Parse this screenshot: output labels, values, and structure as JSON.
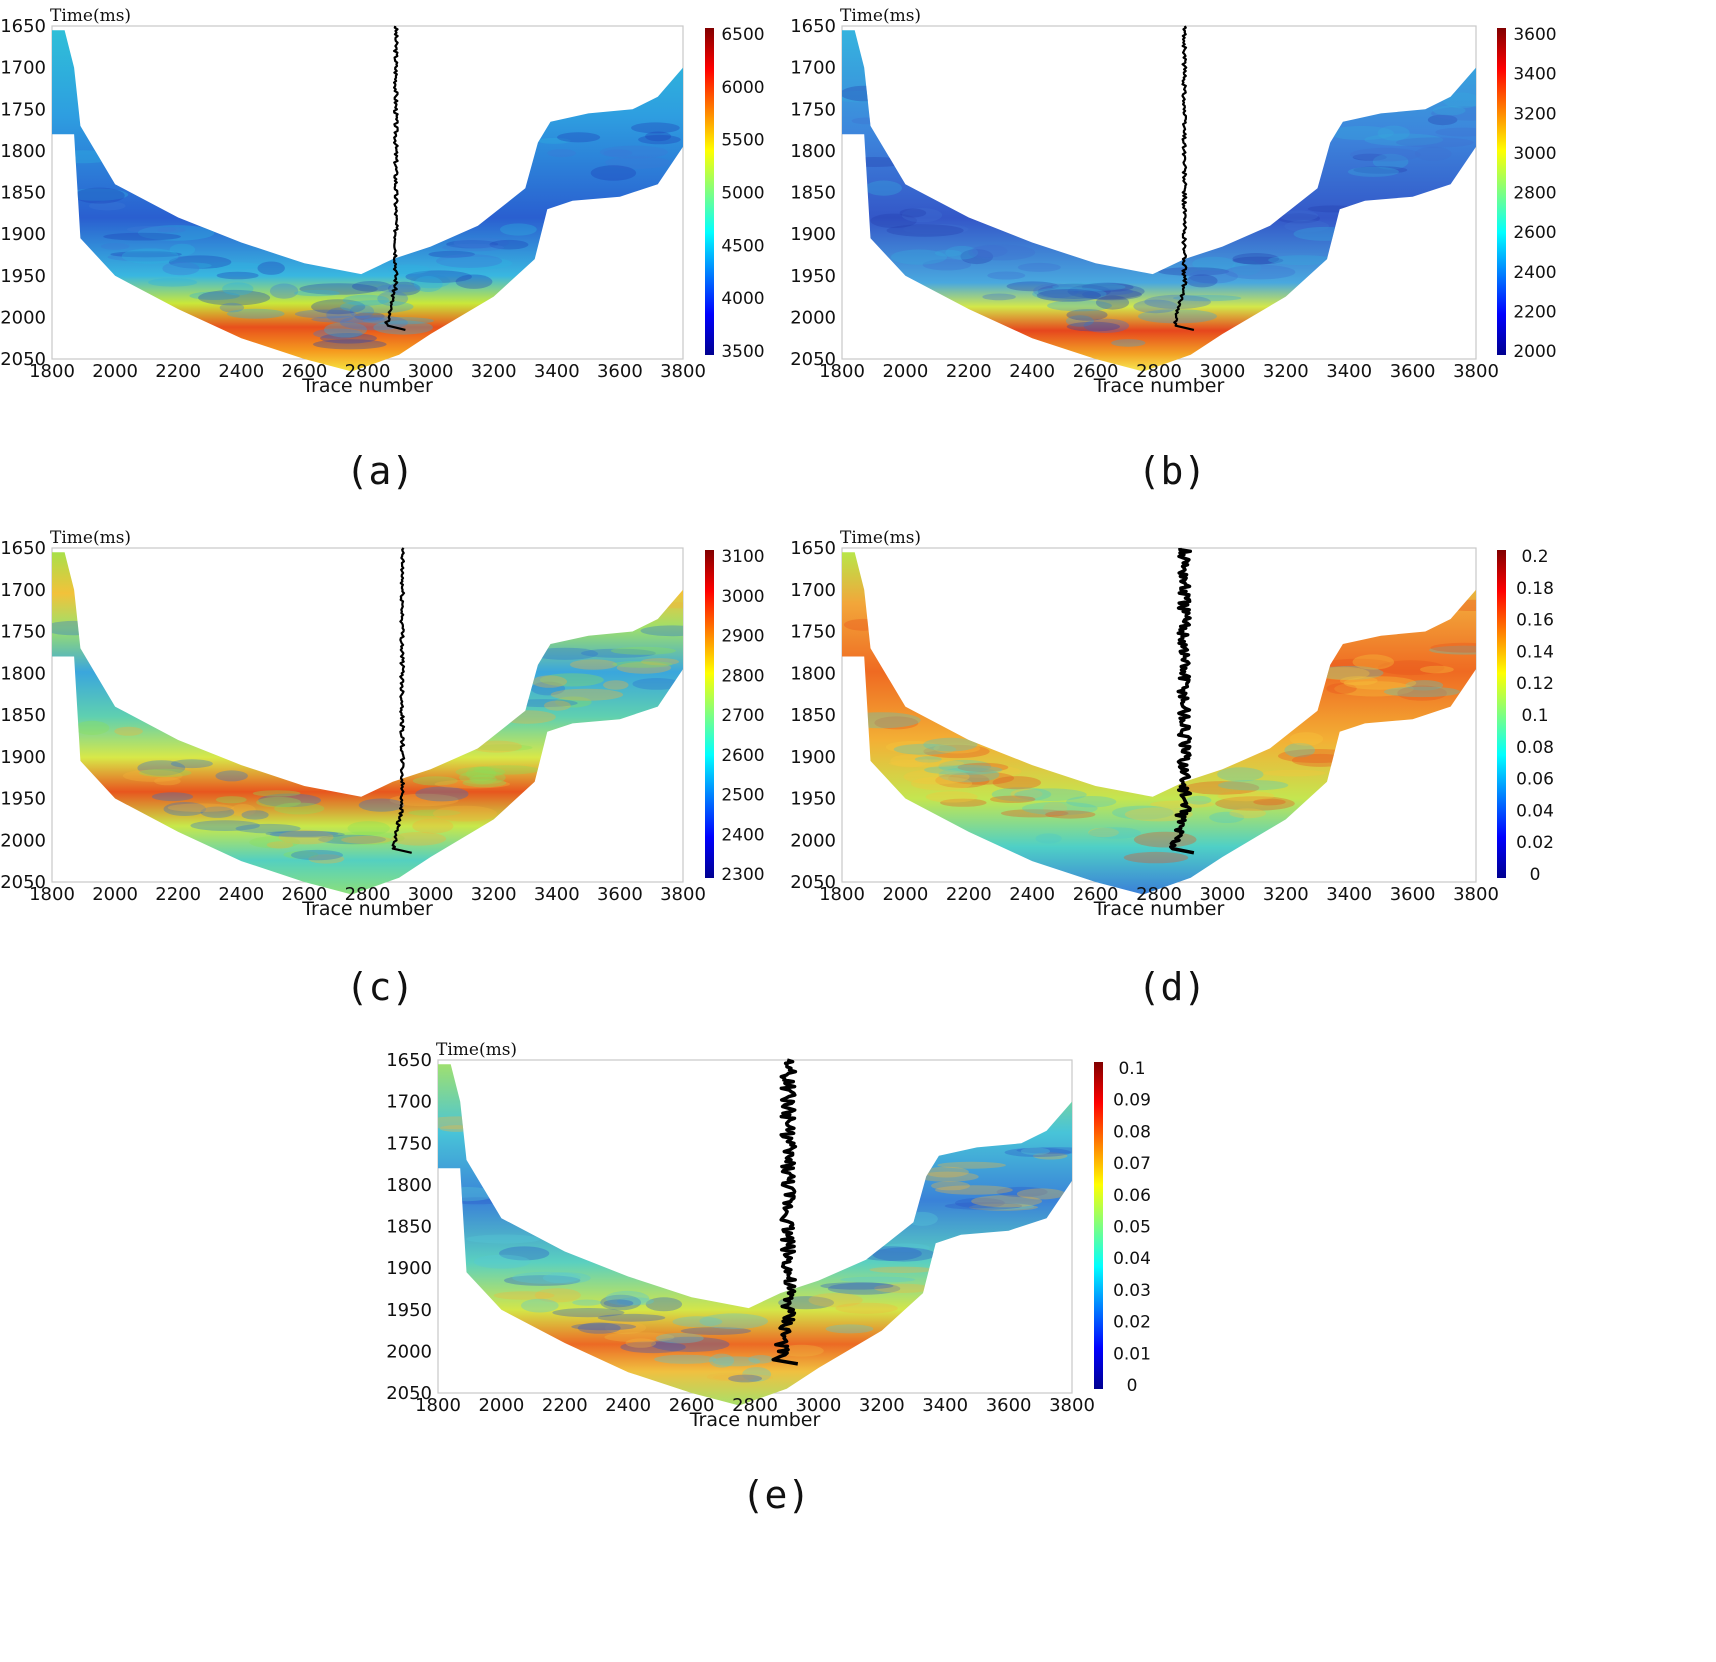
{
  "chart_data": [
    {
      "id": "a",
      "type": "heatmap",
      "caption": "(a)",
      "ylabel": "Time(ms)",
      "xlabel": "Trace number",
      "xlim": [
        1800,
        3800
      ],
      "ylim": [
        1650,
        2050
      ],
      "xticks": [
        "1800",
        "2000",
        "2200",
        "2400",
        "2600",
        "2800",
        "3000",
        "3200",
        "3400",
        "3600",
        "3800"
      ],
      "yticks": [
        "1650",
        "1700",
        "1750",
        "1800",
        "1850",
        "1900",
        "1950",
        "2000",
        "2050"
      ],
      "colorbar": {
        "min": 3500,
        "max": 6500,
        "ticks": [
          "6500",
          "6000",
          "5500",
          "5000",
          "4500",
          "4000",
          "3500"
        ]
      }
    },
    {
      "id": "b",
      "type": "heatmap",
      "caption": "(b)",
      "ylabel": "Time(ms)",
      "xlabel": "Trace number",
      "xlim": [
        1800,
        3800
      ],
      "ylim": [
        1650,
        2050
      ],
      "xticks": [
        "1800",
        "2000",
        "2200",
        "2400",
        "2600",
        "2800",
        "3000",
        "3200",
        "3400",
        "3600",
        "3800"
      ],
      "yticks": [
        "1650",
        "1700",
        "1750",
        "1800",
        "1850",
        "1900",
        "1950",
        "2000",
        "2050"
      ],
      "colorbar": {
        "min": 2000,
        "max": 3600,
        "ticks": [
          "3600",
          "3400",
          "3200",
          "3000",
          "2800",
          "2600",
          "2400",
          "2200",
          "2000"
        ]
      }
    },
    {
      "id": "c",
      "type": "heatmap",
      "caption": "(c)",
      "ylabel": "Time(ms)",
      "xlabel": "Trace number",
      "xlim": [
        1800,
        3800
      ],
      "ylim": [
        1650,
        2050
      ],
      "xticks": [
        "1800",
        "2000",
        "2200",
        "2400",
        "2600",
        "2800",
        "3000",
        "3200",
        "3400",
        "3600",
        "3800"
      ],
      "yticks": [
        "1650",
        "1700",
        "1750",
        "1800",
        "1850",
        "1900",
        "1950",
        "2000",
        "2050"
      ],
      "colorbar": {
        "min": 2300,
        "max": 3100,
        "ticks": [
          "3100",
          "3000",
          "2900",
          "2800",
          "2700",
          "2600",
          "2500",
          "2400",
          "2300"
        ]
      }
    },
    {
      "id": "d",
      "type": "heatmap",
      "caption": "(d)",
      "ylabel": "Time(ms)",
      "xlabel": "Trace number",
      "xlim": [
        1800,
        3800
      ],
      "ylim": [
        1650,
        2050
      ],
      "xticks": [
        "1800",
        "2000",
        "2200",
        "2400",
        "2600",
        "2800",
        "3000",
        "3200",
        "3400",
        "3600",
        "3800"
      ],
      "yticks": [
        "1650",
        "1700",
        "1750",
        "1800",
        "1850",
        "1900",
        "1950",
        "2000",
        "2050"
      ],
      "colorbar": {
        "min": 0,
        "max": 0.2,
        "ticks": [
          "0.2",
          "0.18",
          "0.16",
          "0.14",
          "0.12",
          "0.1",
          "0.08",
          "0.06",
          "0.04",
          "0.02",
          "0"
        ]
      }
    },
    {
      "id": "e",
      "type": "heatmap",
      "caption": "(e)",
      "ylabel": "Time(ms)",
      "xlabel": "Trace number",
      "xlim": [
        1800,
        3800
      ],
      "ylim": [
        1650,
        2050
      ],
      "xticks": [
        "1800",
        "2000",
        "2200",
        "2400",
        "2600",
        "2800",
        "3000",
        "3200",
        "3400",
        "3600",
        "3800"
      ],
      "yticks": [
        "1650",
        "1700",
        "1750",
        "1800",
        "1850",
        "1900",
        "1950",
        "2000",
        "2050"
      ],
      "colorbar": {
        "min": 0,
        "max": 0.1,
        "ticks": [
          "0.1",
          "0.09",
          "0.08",
          "0.07",
          "0.06",
          "0.05",
          "0.04",
          "0.03",
          "0.02",
          "0.01",
          "0"
        ]
      }
    }
  ]
}
